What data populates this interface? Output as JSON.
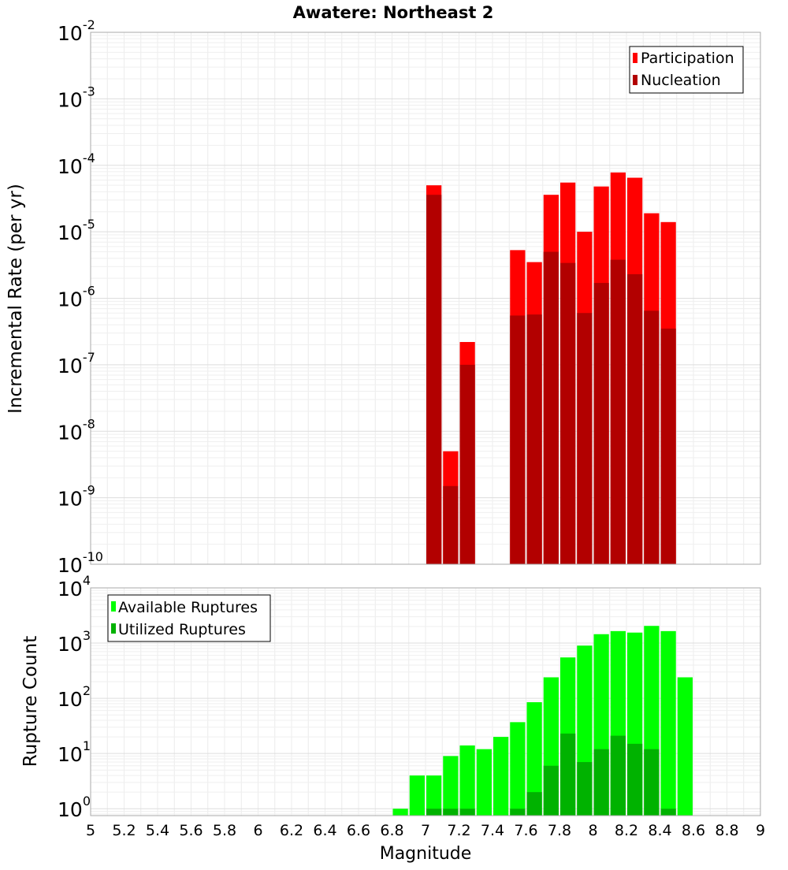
{
  "chart_data": [
    {
      "type": "bar",
      "title": "Awatere: Northeast 2",
      "xlabel": "",
      "ylabel": "Incremental Rate (per yr)",
      "yscale": "log",
      "xlim": [
        5,
        9
      ],
      "ylim": [
        1e-10,
        0.01
      ],
      "grid": true,
      "legend_position": "top-right",
      "bin_width": 0.1,
      "y_ticks": [
        {
          "value": 1e-10,
          "base": "10",
          "exp": "-10"
        },
        {
          "value": 1e-09,
          "base": "10",
          "exp": "-9"
        },
        {
          "value": 1e-08,
          "base": "10",
          "exp": "-8"
        },
        {
          "value": 1e-07,
          "base": "10",
          "exp": "-7"
        },
        {
          "value": 1e-06,
          "base": "10",
          "exp": "-6"
        },
        {
          "value": 1e-05,
          "base": "10",
          "exp": "-5"
        },
        {
          "value": 0.0001,
          "base": "10",
          "exp": "-4"
        },
        {
          "value": 0.001,
          "base": "10",
          "exp": "-3"
        },
        {
          "value": 0.01,
          "base": "10",
          "exp": "-2"
        }
      ],
      "series": [
        {
          "name": "Participation",
          "color": "#ff0000",
          "x": [
            7.05,
            7.15,
            7.25,
            7.55,
            7.65,
            7.75,
            7.85,
            7.95,
            8.05,
            8.15,
            8.25,
            8.35,
            8.45
          ],
          "values": [
            5e-05,
            5e-09,
            2.2e-07,
            5.3e-06,
            3.5e-06,
            3.6e-05,
            5.5e-05,
            1e-05,
            4.8e-05,
            7.8e-05,
            6.5e-05,
            1.9e-05,
            1.4e-05
          ]
        },
        {
          "name": "Nucleation",
          "color": "#b20000",
          "x": [
            7.05,
            7.15,
            7.25,
            7.55,
            7.65,
            7.75,
            7.85,
            7.95,
            8.05,
            8.15,
            8.25,
            8.35,
            8.45
          ],
          "values": [
            3.6e-05,
            1.5e-09,
            1e-07,
            5.5e-07,
            5.7e-07,
            5e-06,
            3.4e-06,
            6e-07,
            1.7e-06,
            3.8e-06,
            2.3e-06,
            6.5e-07,
            3.5e-07
          ]
        }
      ]
    },
    {
      "type": "bar",
      "title": "",
      "xlabel": "Magnitude",
      "ylabel": "Rupture Count",
      "yscale": "log",
      "xlim": [
        5,
        9
      ],
      "ylim": [
        0.75,
        10000
      ],
      "grid": true,
      "legend_position": "top-left",
      "bin_width": 0.1,
      "x_tick_labels": [
        "5",
        "5.2",
        "5.4",
        "5.6",
        "5.8",
        "6",
        "6.2",
        "6.4",
        "6.6",
        "6.8",
        "7",
        "7.2",
        "7.4",
        "7.6",
        "7.8",
        "8",
        "8.2",
        "8.4",
        "8.6",
        "8.8",
        "9"
      ],
      "y_ticks": [
        {
          "value": 1,
          "base": "10",
          "exp": "0"
        },
        {
          "value": 10,
          "base": "10",
          "exp": "1"
        },
        {
          "value": 100,
          "base": "10",
          "exp": "2"
        },
        {
          "value": 1000,
          "base": "10",
          "exp": "3"
        },
        {
          "value": 10000,
          "base": "10",
          "exp": "4"
        }
      ],
      "series": [
        {
          "name": "Available Ruptures",
          "color": "#00ff00",
          "x": [
            6.85,
            6.95,
            7.05,
            7.15,
            7.25,
            7.35,
            7.45,
            7.55,
            7.65,
            7.75,
            7.85,
            7.95,
            8.05,
            8.15,
            8.25,
            8.35,
            8.45,
            8.55
          ],
          "values": [
            1,
            4,
            4,
            9,
            14,
            12,
            20,
            37,
            85,
            240,
            550,
            900,
            1450,
            1650,
            1550,
            2050,
            1650,
            240
          ]
        },
        {
          "name": "Utilized Ruptures",
          "color": "#00b200",
          "x": [
            7.05,
            7.15,
            7.25,
            7.55,
            7.65,
            7.75,
            7.85,
            7.95,
            8.05,
            8.15,
            8.25,
            8.35,
            8.45
          ],
          "values": [
            1,
            1,
            1,
            1,
            2,
            6,
            23,
            7,
            12,
            21,
            15,
            12,
            1
          ]
        }
      ]
    }
  ]
}
